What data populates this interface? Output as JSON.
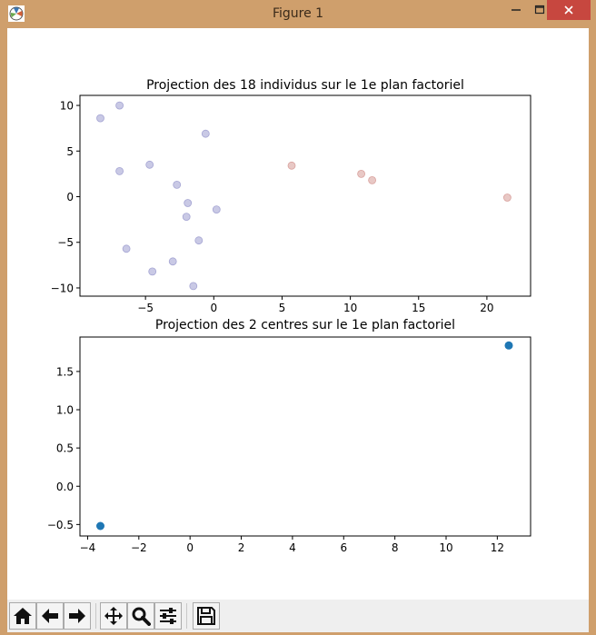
{
  "window": {
    "title": "Figure 1",
    "min_icon": "minimize-icon",
    "max_icon": "maximize-icon",
    "close_icon": "close-icon"
  },
  "toolbar": {
    "buttons": [
      {
        "name": "home-button",
        "icon": "home-icon"
      },
      {
        "name": "back-button",
        "icon": "back-arrow-icon"
      },
      {
        "name": "forward-button",
        "icon": "forward-arrow-icon"
      },
      {
        "name": "pan-button",
        "icon": "move-icon"
      },
      {
        "name": "zoom-button",
        "icon": "zoom-icon"
      },
      {
        "name": "configure-subplots-button",
        "icon": "sliders-icon"
      },
      {
        "name": "save-button",
        "icon": "save-icon"
      }
    ]
  },
  "colors": {
    "cluster_a": "#9d9dcf",
    "cluster_b": "#d69a96",
    "centers": "#1f77b4"
  },
  "chart_data": [
    {
      "type": "scatter",
      "title": "Projection des 18 individus sur le 1e plan factoriel",
      "xlabel": "",
      "ylabel": "",
      "xlim": [
        -9.8,
        23.2
      ],
      "ylim": [
        -10.9,
        11.1
      ],
      "xticks": [
        -5,
        0,
        5,
        10,
        15,
        20
      ],
      "yticks": [
        -10,
        -5,
        0,
        5,
        10
      ],
      "xtick_labels": [
        "−5",
        "0",
        "5",
        "10",
        "15",
        "20"
      ],
      "ytick_labels": [
        "−10",
        "−5",
        "0",
        "5",
        "10"
      ],
      "grid": false,
      "series": [
        {
          "color": "#9d9dcf",
          "points": [
            [
              -8.3,
              8.6
            ],
            [
              -6.9,
              10.0
            ],
            [
              -0.6,
              6.9
            ],
            [
              -4.7,
              3.5
            ],
            [
              -6.9,
              2.8
            ],
            [
              -2.7,
              1.3
            ],
            [
              -1.9,
              -0.7
            ],
            [
              0.2,
              -1.4
            ],
            [
              -2.0,
              -2.2
            ],
            [
              -1.1,
              -4.8
            ],
            [
              -6.4,
              -5.7
            ],
            [
              -3.0,
              -7.1
            ],
            [
              -4.5,
              -8.2
            ],
            [
              -1.5,
              -9.8
            ]
          ]
        },
        {
          "color": "#d69a96",
          "points": [
            [
              5.7,
              3.4
            ],
            [
              10.8,
              2.5
            ],
            [
              11.6,
              1.8
            ],
            [
              21.5,
              -0.1
            ]
          ]
        }
      ]
    },
    {
      "type": "scatter",
      "title": "Projection des 2 centres sur le 1e plan factoriel",
      "xlabel": "",
      "ylabel": "",
      "xlim": [
        -4.3,
        13.3
      ],
      "ylim": [
        -0.65,
        1.95
      ],
      "xticks": [
        -4,
        -2,
        0,
        2,
        4,
        6,
        8,
        10,
        12
      ],
      "yticks": [
        -0.5,
        0.0,
        0.5,
        1.0,
        1.5
      ],
      "xtick_labels": [
        "−4",
        "−2",
        "0",
        "2",
        "4",
        "6",
        "8",
        "10",
        "12"
      ],
      "ytick_labels": [
        "−0.5",
        "0.0",
        "0.5",
        "1.0",
        "1.5"
      ],
      "grid": false,
      "series": [
        {
          "color": "#1f77b4",
          "points": [
            [
              -3.5,
              -0.52
            ],
            [
              12.45,
              1.84
            ]
          ]
        }
      ]
    }
  ]
}
